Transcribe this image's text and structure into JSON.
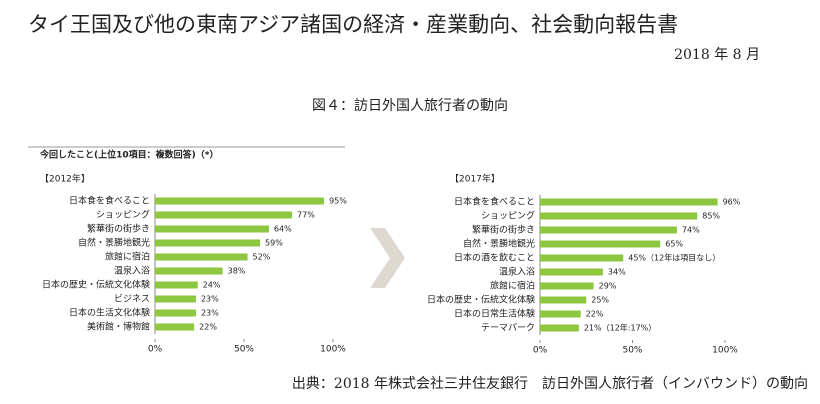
{
  "header": {
    "title": "タイ王国及び他の東南アジア諸国の経済・産業動向、社会動向報告書",
    "date": "2018 年 8 月"
  },
  "figure": {
    "caption": "図４：訪日外国人旅行者の動向",
    "section": "今回したこと(上位10項目：複数回答)（*）",
    "source": "出典：2018 年株式会社三井住友銀行　訪日外国人旅行者（インバウンド）の動向"
  },
  "chart_data": [
    {
      "type": "bar",
      "orientation": "horizontal",
      "title": "【2012年】",
      "color": "#8dc63f",
      "categories": [
        "日本食を食べること",
        "ショッピング",
        "繁華街の街歩き",
        "自然・景勝地観光",
        "旅館に宿泊",
        "温泉入浴",
        "日本の歴史・伝統文化体験",
        "ビジネス",
        "日本の生活文化体験",
        "美術館・博物館"
      ],
      "values": [
        95,
        77,
        64,
        59,
        52,
        38,
        24,
        23,
        23,
        22
      ],
      "value_labels": [
        "95%",
        "77%",
        "64%",
        "59%",
        "52%",
        "38%",
        "24%",
        "23%",
        "23%",
        "22%"
      ],
      "xlim": [
        0,
        100
      ],
      "xticks": [
        {
          "value": 0,
          "label": "0%"
        },
        {
          "value": 50,
          "label": "50%"
        },
        {
          "value": 100,
          "label": "100%"
        }
      ]
    },
    {
      "type": "bar",
      "orientation": "horizontal",
      "title": "【2017年】",
      "color": "#8dc63f",
      "categories": [
        "日本食を食べること",
        "ショッピング",
        "繁華街の街歩き",
        "自然・景勝地観光",
        "日本の酒を飲むこと",
        "温泉入浴",
        "旅館に宿泊",
        "日本の歴史・伝統文化体験",
        "日本の日常生活体験",
        "テーマパーク"
      ],
      "values": [
        96,
        85,
        74,
        65,
        45,
        34,
        29,
        25,
        22,
        21
      ],
      "value_labels": [
        "96%",
        "85%",
        "74%",
        "65%",
        "45%（12年は項目なし）",
        "34%",
        "29%",
        "25%",
        "22%",
        "21%（12年:17%）"
      ],
      "xlim": [
        0,
        100
      ],
      "xticks": [
        {
          "value": 0,
          "label": "0%"
        },
        {
          "value": 50,
          "label": "50%"
        },
        {
          "value": 100,
          "label": "100%"
        }
      ]
    }
  ]
}
